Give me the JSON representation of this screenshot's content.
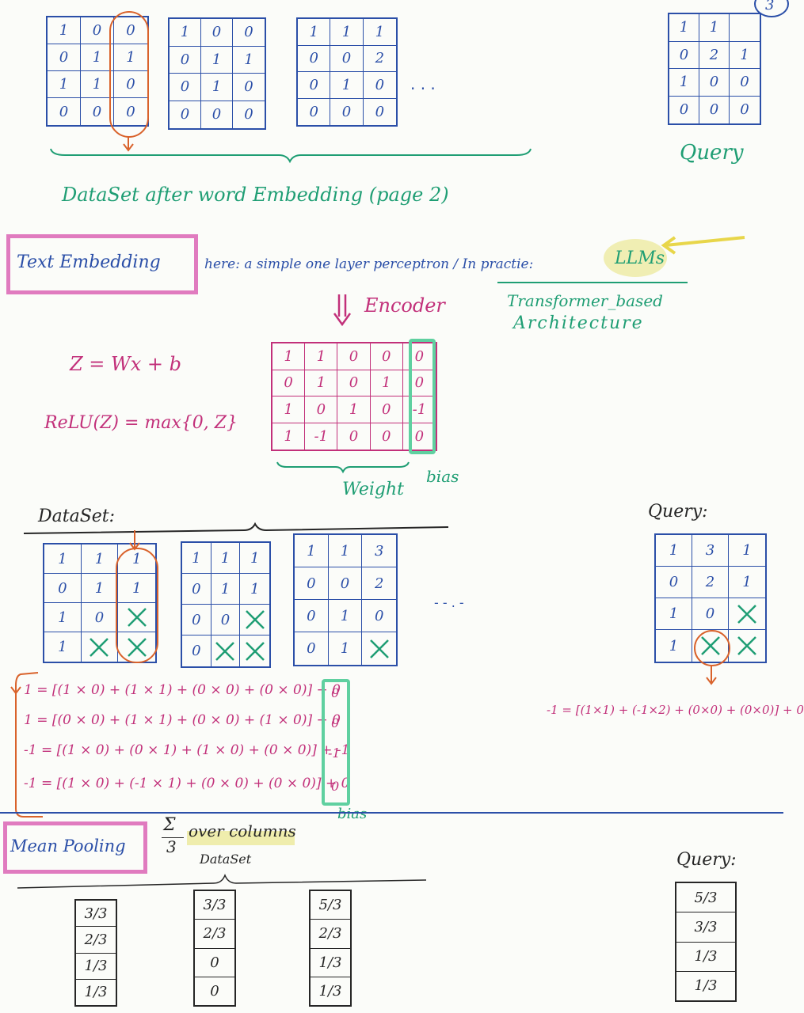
{
  "page_number": "3",
  "top": {
    "matrices": [
      [
        [
          "1",
          "0",
          "0"
        ],
        [
          "0",
          "1",
          "1"
        ],
        [
          "1",
          "1",
          "0"
        ],
        [
          "0",
          "0",
          "0"
        ]
      ],
      [
        [
          "1",
          "0",
          "0"
        ],
        [
          "0",
          "1",
          "1"
        ],
        [
          "0",
          "1",
          "0"
        ],
        [
          "0",
          "0",
          "0"
        ]
      ],
      [
        [
          "1",
          "1",
          "1"
        ],
        [
          "0",
          "0",
          "2"
        ],
        [
          "0",
          "1",
          "0"
        ],
        [
          "0",
          "0",
          "0"
        ]
      ]
    ],
    "ellipsis": ". . .",
    "query_matrix": [
      [
        "1",
        "1",
        " "
      ],
      [
        "0",
        "2",
        "1"
      ],
      [
        "1",
        "0",
        "0"
      ],
      [
        "0",
        "0",
        "0"
      ]
    ],
    "query_label": "Query",
    "dataset_caption": "DataSet after word Embedding (page 2)"
  },
  "embedding": {
    "title": "Text Embedding",
    "note": "here: a simple one layer perceptron / In practie:",
    "llm_label": "LLMs",
    "llm_sub1": "Transformer_based",
    "llm_sub2": "Architecture",
    "encoder_label": "Encoder",
    "formula1": "Z = Wx + b",
    "formula2": "ReLU(Z) = max{0, Z}",
    "weight_matrix": [
      [
        "1",
        "1",
        "0",
        "0",
        "0"
      ],
      [
        "0",
        "1",
        "0",
        "1",
        "0"
      ],
      [
        "1",
        "0",
        "1",
        "0",
        "-1"
      ],
      [
        "1",
        "-1",
        "0",
        "0",
        "0"
      ]
    ],
    "weight_label": "Weight",
    "bias_label": "bias"
  },
  "dataset2": {
    "label": "DataSet:",
    "matrices": [
      [
        [
          "1",
          "1",
          "1"
        ],
        [
          "0",
          "1",
          "1"
        ],
        [
          "1",
          "0",
          "X"
        ],
        [
          "1",
          "X",
          "X"
        ]
      ],
      [
        [
          "1",
          "1",
          "1"
        ],
        [
          "0",
          "1",
          "1"
        ],
        [
          "0",
          "0",
          "X"
        ],
        [
          "0",
          "X",
          "X"
        ]
      ],
      [
        [
          "1",
          "1",
          "3"
        ],
        [
          "0",
          "0",
          "2"
        ],
        [
          "0",
          "1",
          "0"
        ],
        [
          "0",
          "1",
          "X"
        ]
      ]
    ],
    "ellipsis": "- - . -",
    "query_label": "Query:",
    "query_matrix": [
      [
        "1",
        "3",
        "1"
      ],
      [
        "0",
        "2",
        "1"
      ],
      [
        "1",
        "0",
        "X"
      ],
      [
        "1",
        "X",
        "X"
      ]
    ],
    "equations": [
      "1 = [(1 × 0) + (1 × 1) + (0 × 0) + (0 × 0)] + 0",
      "1 = [(0 × 0) + (1 × 1) + (0 × 0) + (1 × 0)] + 0",
      "-1 = [(1 × 0) + (0 × 1) + (1 × 0) + (0 × 0)] + -1",
      "-1 = [(1 × 0) + (-1 × 1) + (0 × 0) + (0 × 0)] + 0"
    ],
    "query_equation": "-1 = [(1×1) + (-1×2) + (0×0) + (0×0)] + 0",
    "bias_values": [
      "0",
      "0",
      "-1",
      "0"
    ],
    "bias_label": "bias"
  },
  "pooling": {
    "title": "Mean Pooling",
    "formula_num": "Σ",
    "formula_den": "3",
    "formula_text": "over columns",
    "dataset_label": "DataSet",
    "query_label": "Query:",
    "columns": [
      [
        "3/3",
        "2/3",
        "1/3",
        "1/3"
      ],
      [
        "3/3",
        "2/3",
        "0",
        "0"
      ],
      [
        "5/3",
        "2/3",
        "1/3",
        "1/3"
      ]
    ],
    "query_column": [
      "5/3",
      "3/3",
      "1/3",
      "1/3"
    ]
  },
  "colors": {
    "blue": "#2b4fa8",
    "green": "#1f9e74",
    "pink": "#c2307a",
    "orange": "#d9622b",
    "highlight": "#e8e27a"
  }
}
